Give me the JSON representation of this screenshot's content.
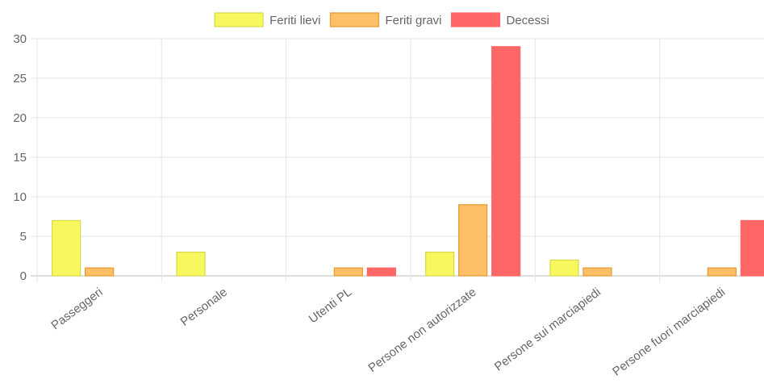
{
  "chart_data": {
    "type": "bar",
    "categories": [
      "Passeggeri",
      "Personale",
      "Utenti PL",
      "Persone non autorizzate",
      "Persone sui marciapiedi",
      "Persone fuori marciapiedi"
    ],
    "series": [
      {
        "name": "Feriti lievi",
        "values": [
          7,
          3,
          0,
          3,
          2,
          0
        ],
        "color": "#f7f75e",
        "border": "#d8d84a"
      },
      {
        "name": "Feriti gravi",
        "values": [
          1,
          0,
          1,
          9,
          1,
          1
        ],
        "color": "#ffbf66",
        "border": "#e69a30"
      },
      {
        "name": "Decessi",
        "values": [
          0,
          0,
          1,
          29,
          0,
          7
        ],
        "color": "#ff6666",
        "border": "#ff6666"
      }
    ],
    "ylim": [
      0,
      30
    ],
    "yticks": [
      0,
      5,
      10,
      15,
      20,
      25,
      30
    ],
    "grid": true,
    "legend_position": "top"
  }
}
